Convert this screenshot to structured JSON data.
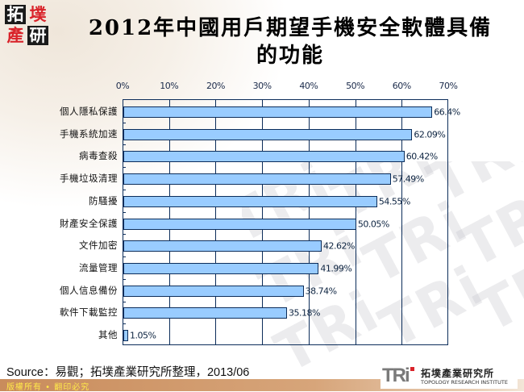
{
  "logo": {
    "chars": [
      "拓",
      "墣",
      "產",
      "研"
    ]
  },
  "title": {
    "line1": "2012年中國用戶期望手機安全軟體具備",
    "line2": "的功能"
  },
  "chart_data": {
    "type": "bar",
    "orientation": "horizontal",
    "title": "2012年中國用戶期望手機安全軟體具備的功能",
    "xlabel": "",
    "ylabel": "",
    "xlim": [
      0,
      70
    ],
    "x_axis_position": "top",
    "x_ticks": [
      "0%",
      "10%",
      "20%",
      "30%",
      "40%",
      "50%",
      "60%",
      "70%"
    ],
    "grid": true,
    "legend": null,
    "categories": [
      "個人隱私保護",
      "手機系統加速",
      "病毒查殺",
      "手機垃圾清理",
      "防騷擾",
      "財產安全保護",
      "文件加密",
      "流量管理",
      "個人信息備份",
      "軟件下載監控",
      "其他"
    ],
    "values": [
      66.4,
      62.09,
      60.42,
      57.49,
      54.55,
      50.05,
      42.62,
      41.99,
      38.74,
      35.18,
      1.05
    ],
    "value_labels": [
      "66.4%",
      "62.09%",
      "60.42%",
      "57.49%",
      "54.55%",
      "50.05%",
      "42.62%",
      "41.99%",
      "38.74%",
      "35.18%",
      "1.05%"
    ],
    "colors": {
      "bar_fill": "#99ccff",
      "bar_border": "#0c2d5a",
      "grid": "#0c2d5a"
    }
  },
  "source": "Source：易觀；拓墣產業研究所整理，2013/06",
  "footer": {
    "text": "版權所有 • 翻印必究"
  },
  "brand": {
    "mark": "TRi",
    "name_cn": "拓墣產業研究所",
    "name_en": "TOPOLOGY RESEARCH INSTITUTE"
  },
  "watermark": "TRi"
}
